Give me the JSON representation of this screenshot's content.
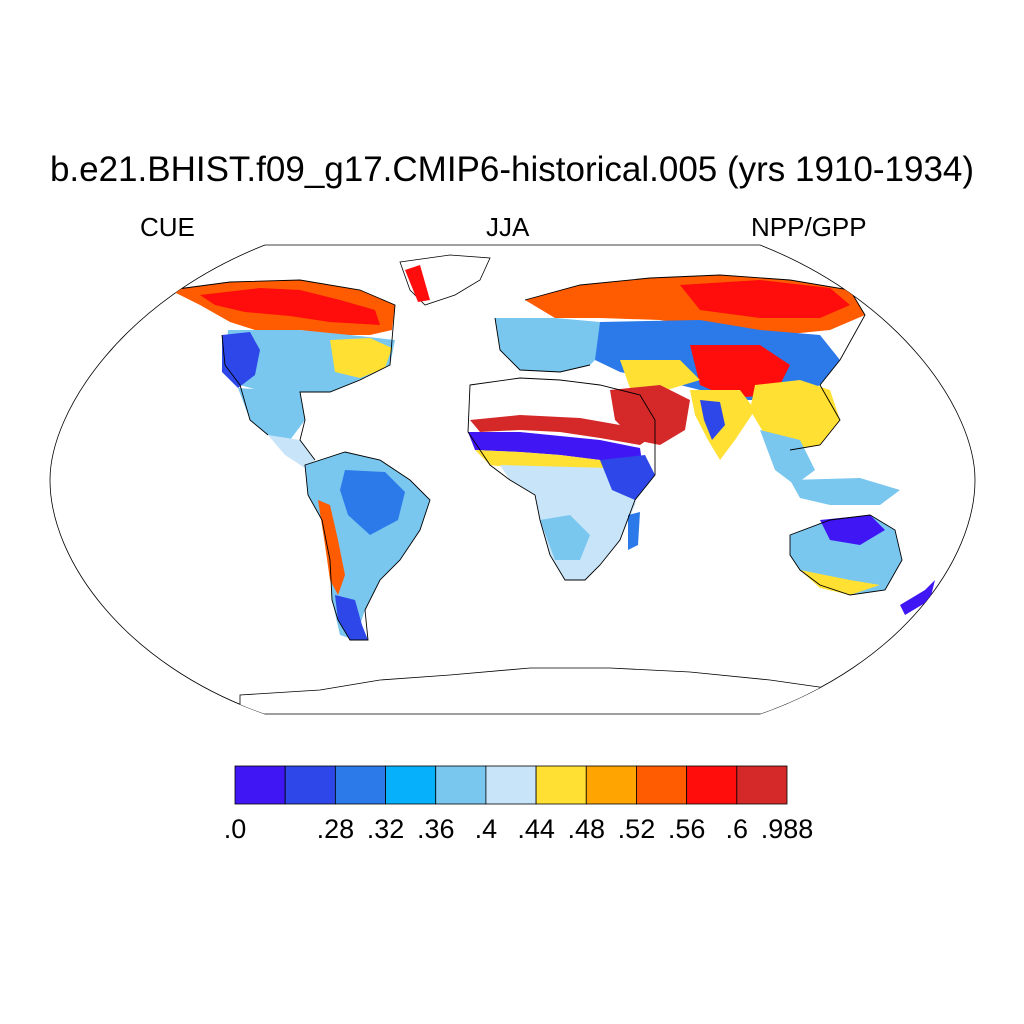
{
  "title": "b.e21.BHIST.f09_g17.CMIP6-historical.005 (yrs 1910-1934)",
  "left_label": "CUE",
  "center_label": "JJA",
  "right_label": "NPP/GPP",
  "colorbar": {
    "colors": [
      "#4016f5",
      "#2d47e8",
      "#2c7ae9",
      "#06b0fb",
      "#79c6ef",
      "#c8e4f8",
      "#ffe033",
      "#ffa400",
      "#ff5b00",
      "#ff0c0c",
      "#d42829"
    ],
    "labels": [
      ".0",
      ".28",
      ".32",
      ".36",
      ".4",
      ".44",
      ".48",
      ".52",
      ".56",
      ".6",
      ".988"
    ]
  }
}
